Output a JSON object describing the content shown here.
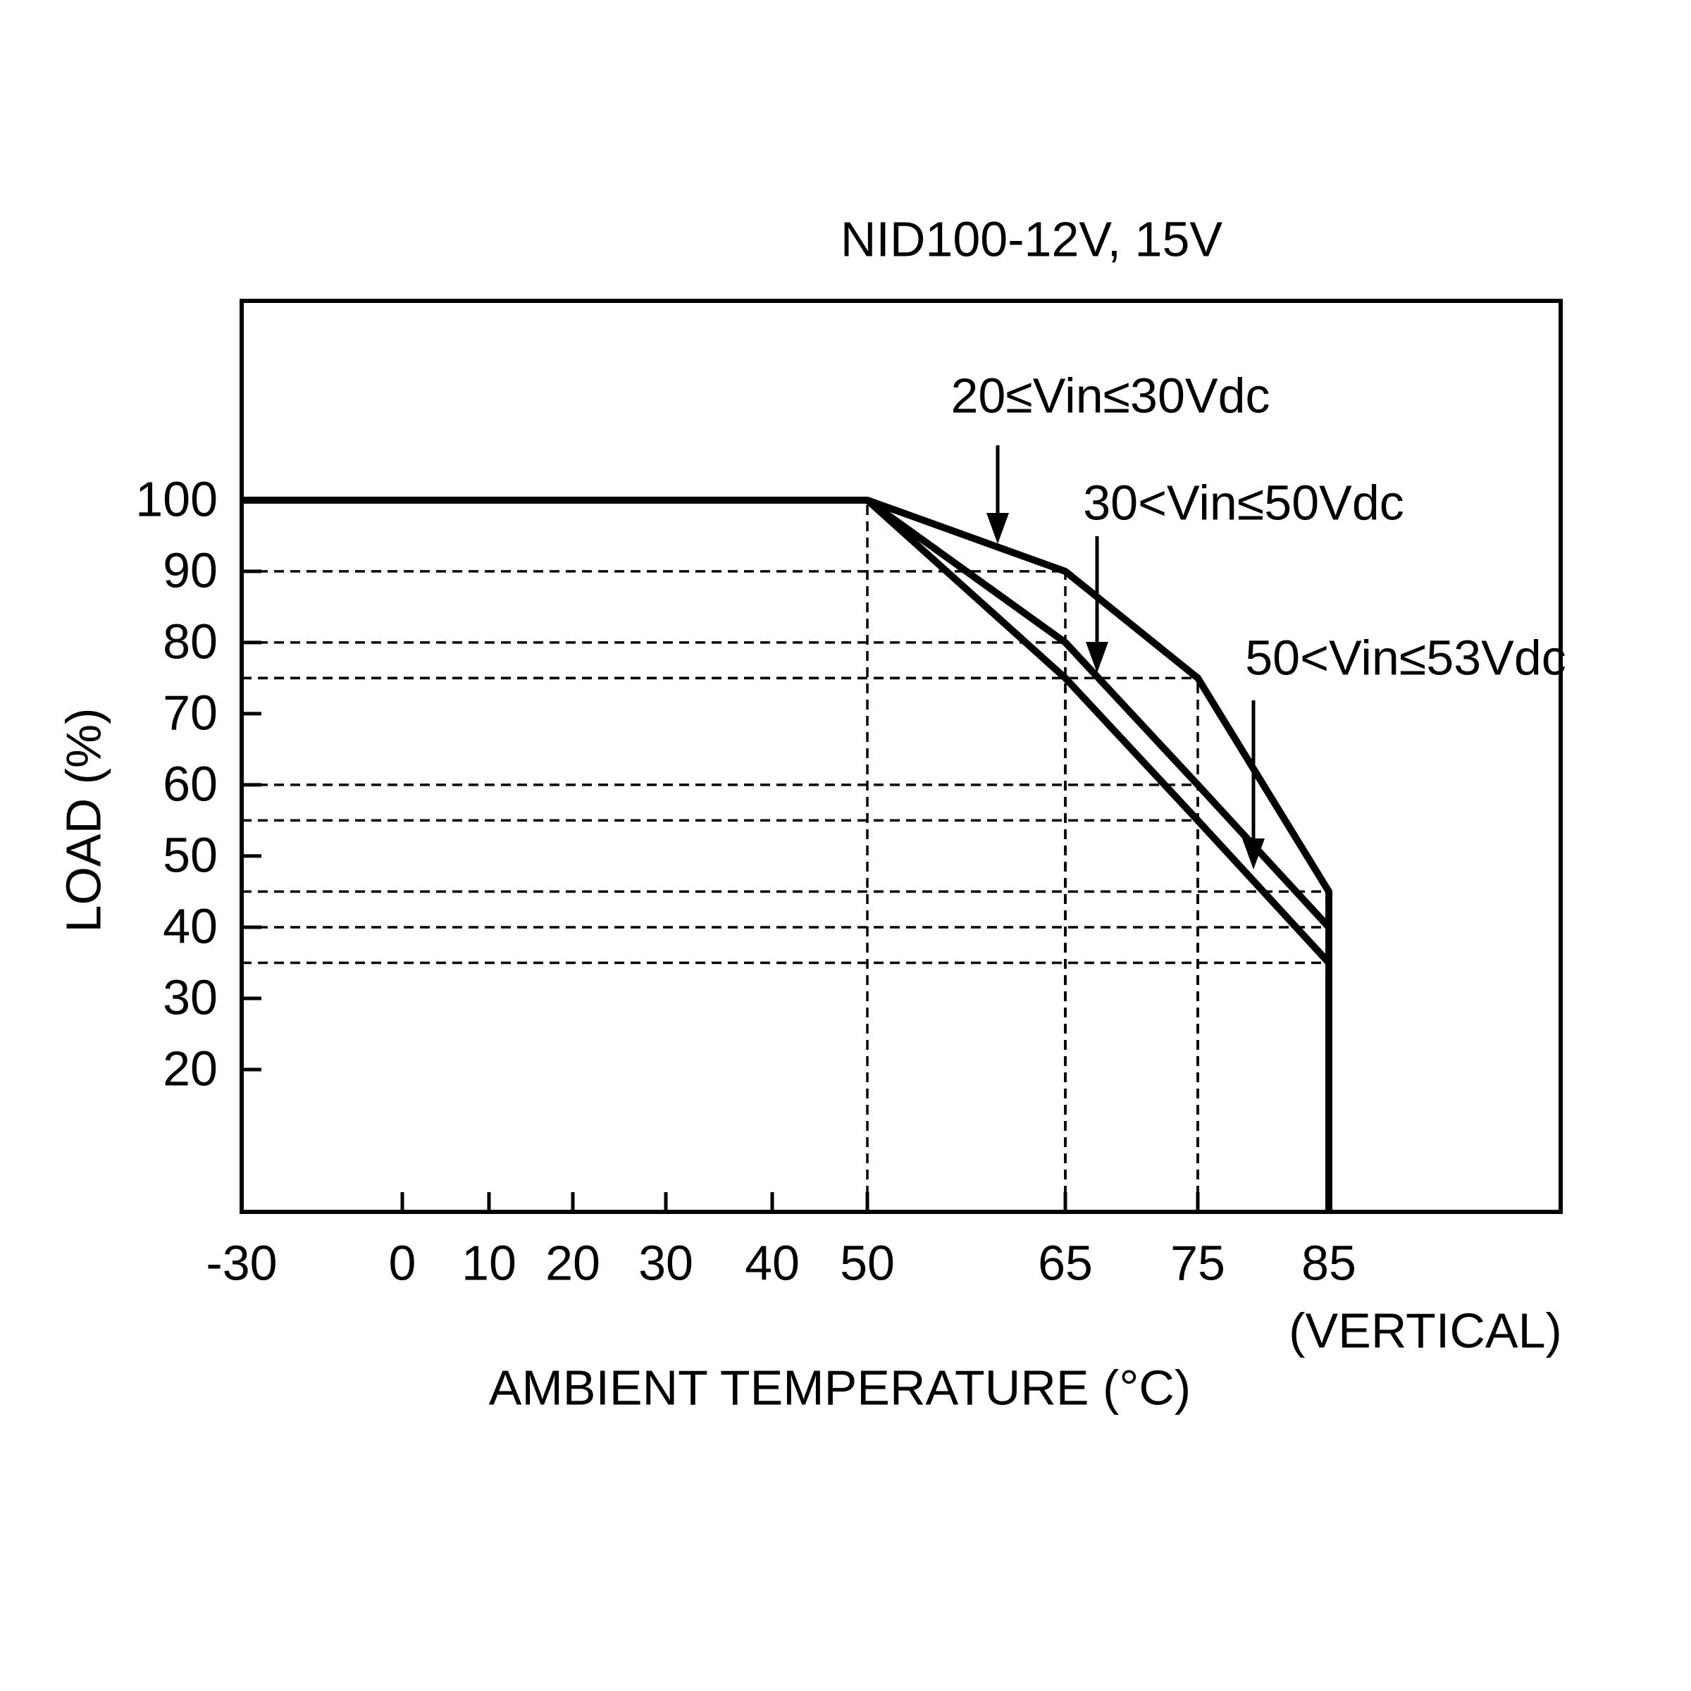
{
  "chart_data": {
    "type": "line",
    "title": "NID100-12V, 15V",
    "x_label": "AMBIENT TEMPERATURE (°C)",
    "x_note": "(VERTICAL)",
    "y_label": "LOAD (%)",
    "xlim": [
      -30,
      102.5
    ],
    "xticks": [
      -30,
      0,
      10,
      20,
      30,
      40,
      50,
      65,
      75,
      85
    ],
    "ylim": [
      0,
      128
    ],
    "yticks": [
      20,
      30,
      40,
      50,
      60,
      70,
      80,
      90,
      100
    ],
    "series": [
      {
        "name": "20≤Vin≤30Vdc",
        "color": "#000000",
        "x": [
          -30,
          50,
          65,
          75,
          85,
          85
        ],
        "values": [
          100,
          100,
          90,
          75,
          45,
          0
        ]
      },
      {
        "name": "30<Vin≤50Vdc",
        "color": "#000000",
        "x": [
          50,
          65,
          75,
          85
        ],
        "values": [
          100,
          80,
          60,
          40
        ]
      },
      {
        "name": "50<Vin≤53Vdc",
        "color": "#000000",
        "x": [
          50,
          65,
          75,
          85
        ],
        "values": [
          100,
          75,
          55,
          35
        ]
      }
    ]
  }
}
